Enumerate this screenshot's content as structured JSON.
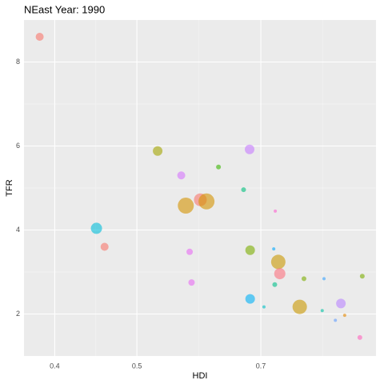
{
  "chart_data": {
    "type": "scatter",
    "title": "NEast Year: 1990",
    "x_label": "HDI",
    "y_label": "TFR",
    "x": [
      0.384,
      0.448,
      0.458,
      0.529,
      0.564,
      0.571,
      0.594,
      0.604,
      0.624,
      0.679,
      0.668,
      0.577,
      0.58,
      0.68,
      0.68,
      0.734,
      0.737,
      0.778,
      0.87,
      0.922,
      0.787,
      0.728,
      0.831,
      0.727,
      0.916,
      0.857,
      0.879,
      0.706,
      0.827,
      0.725
    ],
    "values": [
      8.6,
      4.04,
      3.6,
      5.88,
      5.3,
      4.58,
      4.72,
      4.68,
      5.5,
      5.92,
      4.96,
      3.48,
      2.75,
      3.52,
      2.36,
      3.24,
      2.96,
      2.17,
      2.25,
      2.9,
      2.84,
      4.45,
      2.84,
      2.7,
      1.44,
      1.85,
      1.97,
      2.17,
      2.08,
      3.55
    ],
    "sizes": [
      5,
      7,
      5,
      6,
      5,
      10,
      8,
      10,
      3,
      6,
      3,
      4,
      4,
      6,
      6,
      9,
      7,
      9,
      6,
      3,
      3,
      2,
      2,
      3,
      3,
      2,
      2,
      2,
      2,
      2
    ],
    "colors": [
      "#f8766d",
      "#00bcd8",
      "#f8766d",
      "#a3a500",
      "#d575fe",
      "#d39200",
      "#f8766d",
      "#d39200",
      "#39b600",
      "#c77cff",
      "#00bf7d",
      "#e76bf3",
      "#e76bf3",
      "#7cae00",
      "#00b0f6",
      "#c99800",
      "#fc717f",
      "#c99800",
      "#b983ff",
      "#7cae00",
      "#7cae00",
      "#fd61d1",
      "#35a2ff",
      "#00c08b",
      "#ff62bc",
      "#619cff",
      "#e58700",
      "#00bfc4",
      "#00c1a3",
      "#00a9ff"
    ],
    "xlim": [
      0.368,
      0.957
    ],
    "ylim": [
      1.0,
      9.0
    ],
    "xscale": "log",
    "xticks": [
      0.4,
      0.5,
      0.7
    ],
    "yticks": [
      2,
      4,
      6,
      8
    ],
    "grid": true
  }
}
